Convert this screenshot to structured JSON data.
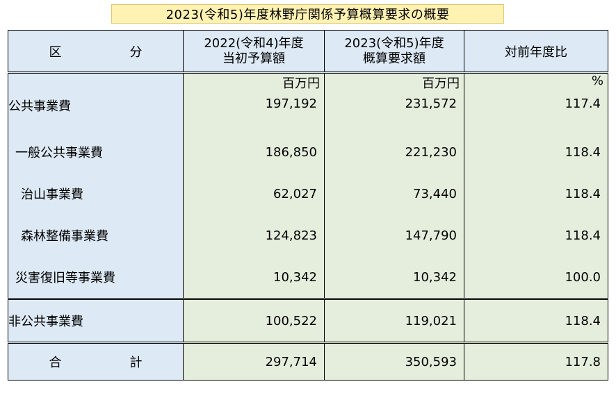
{
  "title": "2023(令和5)年度林野庁関係予算概算要求の概要",
  "headers": {
    "col0": "区　分",
    "col1_line1": "2022(令和4)年度",
    "col1_line2": "当初予算額",
    "col2_line1": "2023(令和5)年度",
    "col2_line2": "概算要求額",
    "col3": "対前年度比"
  },
  "units": {
    "col1": "百万円",
    "col2": "百万円",
    "col3": "%"
  },
  "rows": [
    {
      "label": "公共事業費",
      "v2022": "197,192",
      "v2023": "231,572",
      "ratio": "117.4"
    },
    {
      "label": "一般公共事業費",
      "v2022": "186,850",
      "v2023": "221,230",
      "ratio": "118.4"
    },
    {
      "label": "治山事業費",
      "v2022": "62,027",
      "v2023": "73,440",
      "ratio": "118.4"
    },
    {
      "label": "森林整備事業費",
      "v2022": "124,823",
      "v2023": "147,790",
      "ratio": "118.4"
    },
    {
      "label": "災害復旧等事業費",
      "v2022": "10,342",
      "v2023": "10,342",
      "ratio": "100.0"
    },
    {
      "label": "非公共事業費",
      "v2022": "100,522",
      "v2023": "119,021",
      "ratio": "118.4"
    },
    {
      "label": "合　計",
      "v2022": "297,714",
      "v2023": "350,593",
      "ratio": "117.8"
    }
  ]
}
